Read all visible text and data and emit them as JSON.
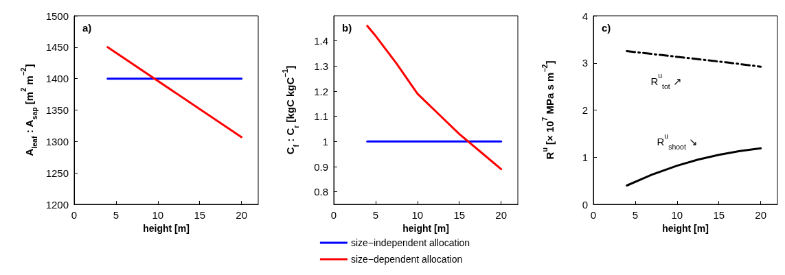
{
  "chart_data": [
    {
      "type": "line",
      "annotations": [
        "a)"
      ],
      "xlabel": "height [m]",
      "ylabel": "A$_{leaf}$ : A$_{sap}$ [m$^{2}$ m$^{−2}$]",
      "xlim": [
        0,
        22
      ],
      "xticks": [
        0,
        5,
        10,
        15,
        20
      ],
      "ylim": [
        1200,
        1500
      ],
      "yticks": [
        1200,
        1250,
        1300,
        1350,
        1400,
        1450,
        1500
      ],
      "legend": false,
      "series": [
        {
          "color": "#0000ff",
          "x": [
            4,
            20
          ],
          "values": [
            1400,
            1400
          ]
        },
        {
          "color": "#ff0000",
          "x": [
            4,
            20
          ],
          "values": [
            1450,
            1307
          ]
        }
      ]
    },
    {
      "type": "line",
      "annotations": [
        "b)"
      ],
      "xlabel": "height [m]",
      "ylabel": "C$_{f}$ : C$_{r}$ [kgC kgC$^{−1}$]",
      "xlim": [
        0,
        22
      ],
      "xticks": [
        0,
        5,
        10,
        15,
        20
      ],
      "ylim": [
        0.75,
        1.5
      ],
      "yticks": [
        0.8,
        0.9,
        1,
        1.1,
        1.2,
        1.3,
        1.4
      ],
      "legend": "bottom",
      "series": [
        {
          "name": "size−independent allocation",
          "color": "#0000ff",
          "x": [
            4,
            20
          ],
          "values": [
            1,
            1
          ]
        },
        {
          "name": "size−dependent allocation",
          "color": "#ff0000",
          "x": [
            4,
            5,
            7.5,
            10,
            12.5,
            15,
            17.5,
            20
          ],
          "values": [
            1.46,
            1.42,
            1.31,
            1.19,
            1.11,
            1.03,
            0.96,
            0.89
          ]
        }
      ]
    },
    {
      "type": "line",
      "annotations": [
        "c)"
      ],
      "xlabel": "height [m]",
      "ylabel": "R$^{u}$ [× 10$^{7}$ MPa s m$^{−2}$]",
      "xlim": [
        0,
        22
      ],
      "xticks": [
        0,
        5,
        10,
        15,
        20
      ],
      "ylim": [
        0,
        4
      ],
      "yticks": [
        0,
        1,
        2,
        3,
        4
      ],
      "legend": false,
      "series": [
        {
          "name": "R$^{u}$$_{tot}$ ↗",
          "color": "#000000",
          "line_style": "dashed",
          "x": [
            4,
            8,
            12,
            16,
            20
          ],
          "values": [
            3.25,
            3.17,
            3.09,
            3.01,
            2.92
          ]
        },
        {
          "name": "R$^{u}$$_{shoot}$ ↘",
          "color": "#000000",
          "line_style": "solid",
          "x": [
            4,
            7,
            10,
            12.5,
            15,
            17.5,
            20
          ],
          "values": [
            0.4,
            0.63,
            0.82,
            0.95,
            1.05,
            1.13,
            1.19
          ]
        }
      ]
    }
  ]
}
